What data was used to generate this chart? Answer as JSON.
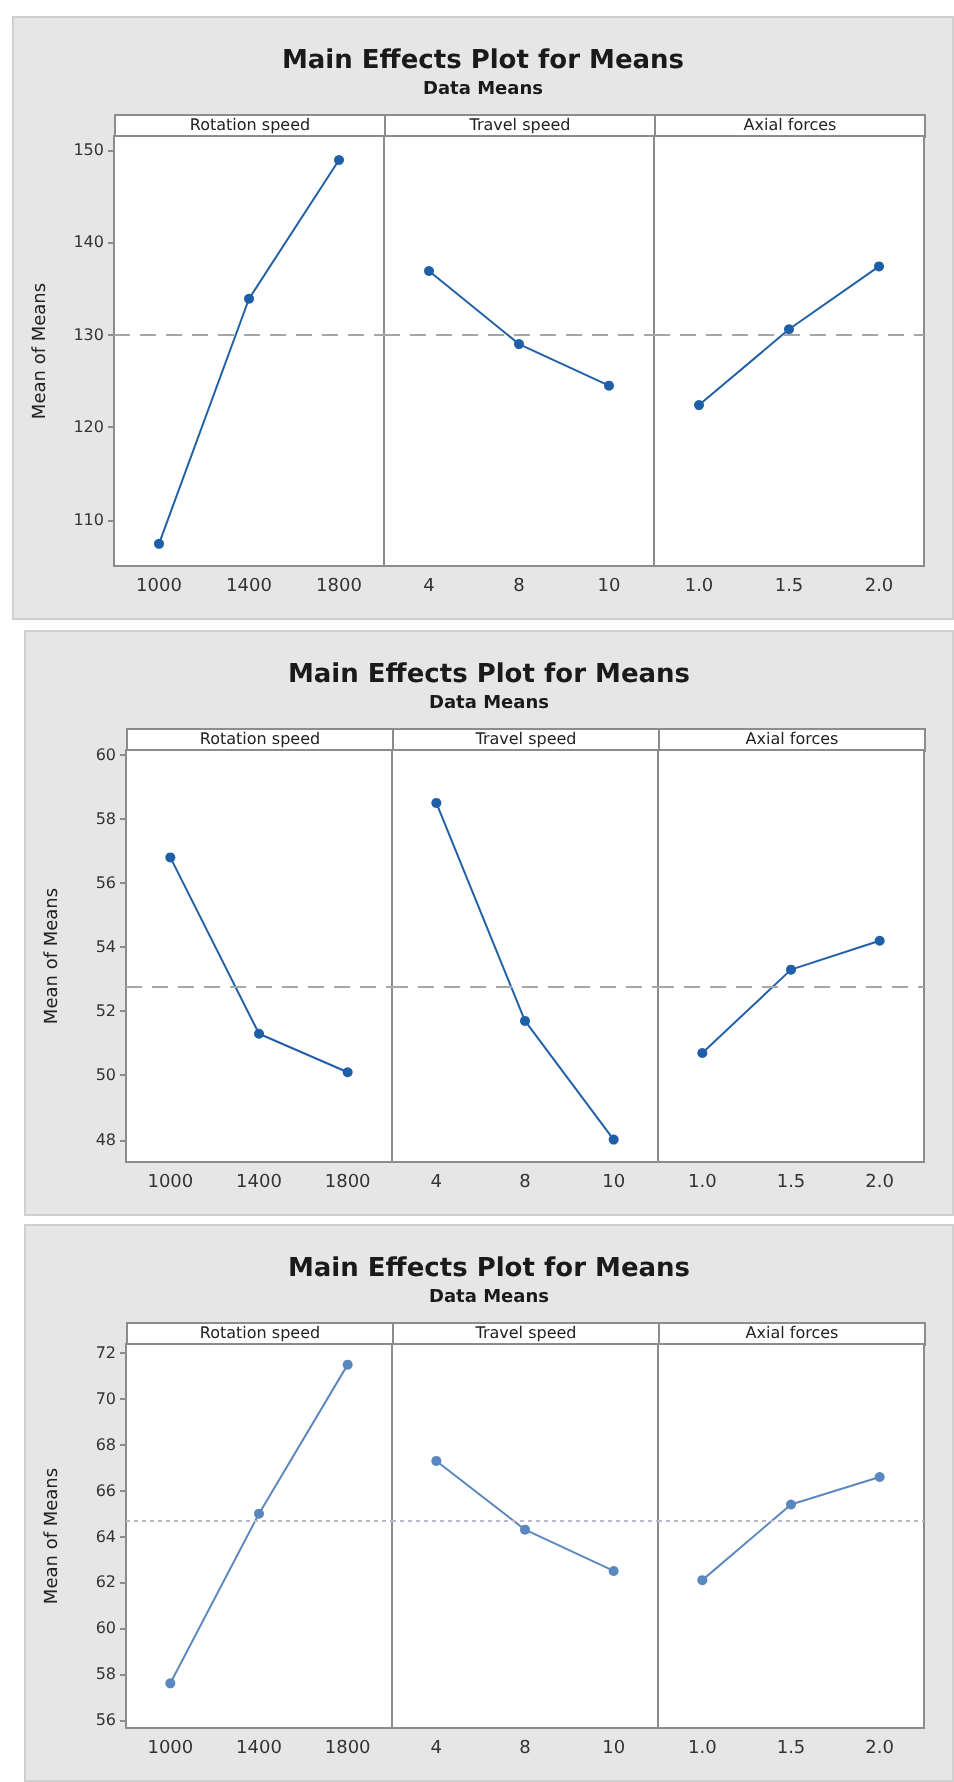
{
  "chart_data": [
    {
      "type": "line",
      "annotations": [
        "Main Effects Plot for Means",
        "Data Means"
      ],
      "title": "Rotation speed",
      "ylabel": "Mean of Means",
      "categories": [
        "1000",
        "1400",
        "1800"
      ],
      "values": [
        107.4,
        133.9,
        148.9
      ],
      "color": "#1f5fa8",
      "marker": "circle",
      "ylim": [
        105,
        151.5
      ],
      "yticks": [
        110,
        120,
        130,
        140,
        150
      ],
      "ref_lines": [
        {
          "axis": "y",
          "value": 130.1,
          "color": "#a6a6a6",
          "line_style": "dashed"
        }
      ]
    },
    {
      "type": "line",
      "title": "Travel speed",
      "categories": [
        "4",
        "8",
        "10"
      ],
      "values": [
        136.9,
        129.0,
        124.5
      ],
      "color": "#1f5fa8",
      "marker": "circle",
      "ylim": [
        105,
        151.5
      ],
      "tick_labels": "x",
      "ref_lines": [
        {
          "axis": "y",
          "value": 130.1,
          "color": "#a6a6a6",
          "line_style": "dashed"
        }
      ]
    },
    {
      "type": "line",
      "title": "Axial forces",
      "categories": [
        "1.0",
        "1.5",
        "2.0"
      ],
      "values": [
        122.4,
        130.6,
        137.4
      ],
      "color": "#1f5fa8",
      "marker": "circle",
      "ylim": [
        105,
        151.5
      ],
      "tick_labels": "x",
      "ref_lines": [
        {
          "axis": "y",
          "value": 130.1,
          "color": "#a6a6a6",
          "line_style": "dashed"
        }
      ]
    },
    {
      "type": "line",
      "annotations": [
        "Main Effects Plot for Means",
        "Data Means"
      ],
      "title": "Rotation speed",
      "ylabel": "Mean of Means",
      "categories": [
        "1000",
        "1400",
        "1800"
      ],
      "values": [
        56.8,
        51.3,
        50.1
      ],
      "color": "#1f5fa8",
      "marker": "circle",
      "ylim": [
        47.3,
        60.15
      ],
      "yticks": [
        48,
        50,
        52,
        54,
        56,
        58,
        60
      ],
      "ref_lines": [
        {
          "axis": "y",
          "value": 52.75,
          "color": "#a6a6a6",
          "line_style": "dashed"
        }
      ]
    },
    {
      "type": "line",
      "title": "Travel speed",
      "categories": [
        "4",
        "8",
        "10"
      ],
      "values": [
        58.5,
        51.7,
        48.0
      ],
      "color": "#1f5fa8",
      "marker": "circle",
      "ylim": [
        47.3,
        60.15
      ],
      "tick_labels": "x",
      "ref_lines": [
        {
          "axis": "y",
          "value": 52.75,
          "color": "#a6a6a6",
          "line_style": "dashed"
        }
      ]
    },
    {
      "type": "line",
      "title": "Axial forces",
      "categories": [
        "1.0",
        "1.5",
        "2.0"
      ],
      "values": [
        50.7,
        53.3,
        54.2
      ],
      "color": "#1f5fa8",
      "marker": "circle",
      "ylim": [
        47.3,
        60.15
      ],
      "tick_labels": "x",
      "ref_lines": [
        {
          "axis": "y",
          "value": 52.75,
          "color": "#a6a6a6",
          "line_style": "dashed"
        }
      ]
    },
    {
      "type": "line",
      "annotations": [
        "Main Effects Plot for Means",
        "Data Means"
      ],
      "title": "Rotation speed",
      "ylabel": "Mean of Means",
      "categories": [
        "1000",
        "1400",
        "1800"
      ],
      "values": [
        57.6,
        65.0,
        71.5
      ],
      "color": "#5b87bf",
      "marker": "circle",
      "ylim": [
        55.65,
        72.4
      ],
      "yticks": [
        56,
        58,
        60,
        62,
        64,
        66,
        68,
        70,
        72
      ],
      "ref_lines": [
        {
          "axis": "y",
          "value": 64.7,
          "color": "#b8b8c8",
          "line_style": "dotted"
        }
      ]
    },
    {
      "type": "line",
      "title": "Travel speed",
      "categories": [
        "4",
        "8",
        "10"
      ],
      "values": [
        67.3,
        64.3,
        62.5
      ],
      "color": "#5b87bf",
      "marker": "circle",
      "ylim": [
        55.65,
        72.4
      ],
      "tick_labels": "x",
      "ref_lines": [
        {
          "axis": "y",
          "value": 64.7,
          "color": "#b8b8c8",
          "line_style": "dotted"
        }
      ]
    },
    {
      "type": "line",
      "title": "Axial forces",
      "categories": [
        "1.0",
        "1.5",
        "2.0"
      ],
      "values": [
        62.1,
        65.4,
        66.6
      ],
      "color": "#5b87bf",
      "marker": "circle",
      "ylim": [
        55.65,
        72.4
      ],
      "tick_labels": "x",
      "ref_lines": [
        {
          "axis": "y",
          "value": 64.7,
          "color": "#b8b8c8",
          "line_style": "dotted"
        }
      ]
    }
  ]
}
